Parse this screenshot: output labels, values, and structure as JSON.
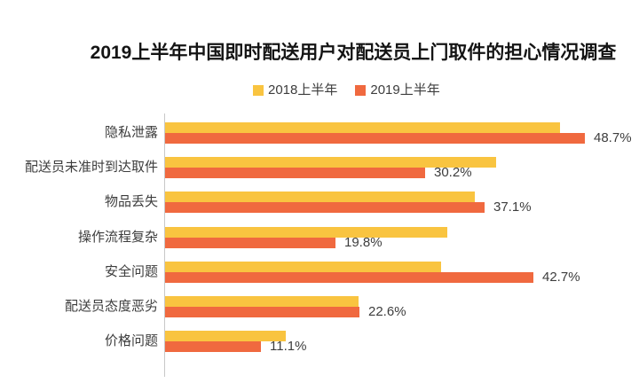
{
  "title": "2019上半年中国即时配送用户对配送员上门取件的担心情况调查",
  "chart_data": {
    "type": "bar",
    "orientation": "horizontal",
    "title": "2019上半年中国即时配送用户对配送员上门取件的担心情况调查",
    "categories": [
      "隐私泄露",
      "配送员未准时到达取件",
      "物品丢失",
      "操作流程复杂",
      "安全问题",
      "配送员态度恶劣",
      "价格问题"
    ],
    "series": [
      {
        "name": "2018上半年",
        "color": "#F9C440",
        "values": [
          45.8,
          38.4,
          35.9,
          32.8,
          32.0,
          22.4,
          14.0
        ],
        "value_labels": [
          "",
          "",
          "",
          "",
          "",
          "",
          ""
        ]
      },
      {
        "name": "2019上半年",
        "color": "#F0693F",
        "values": [
          48.7,
          30.2,
          37.1,
          19.8,
          42.7,
          22.6,
          11.1
        ],
        "value_labels": [
          "48.7%",
          "30.2%",
          "37.1%",
          "19.8%",
          "42.7%",
          "22.6%",
          "11.1%"
        ]
      }
    ],
    "xlim": [
      0,
      52
    ],
    "xlabel": "",
    "ylabel": "",
    "grid": false,
    "legend_position": "top-center"
  },
  "colors": {
    "background": "#ffffff",
    "bar_2018": "#F9C440",
    "bar_2019": "#F0693F",
    "axis_line": "#c8c8c8",
    "title_text": "#141414",
    "label_text": "#3d3d3d"
  }
}
